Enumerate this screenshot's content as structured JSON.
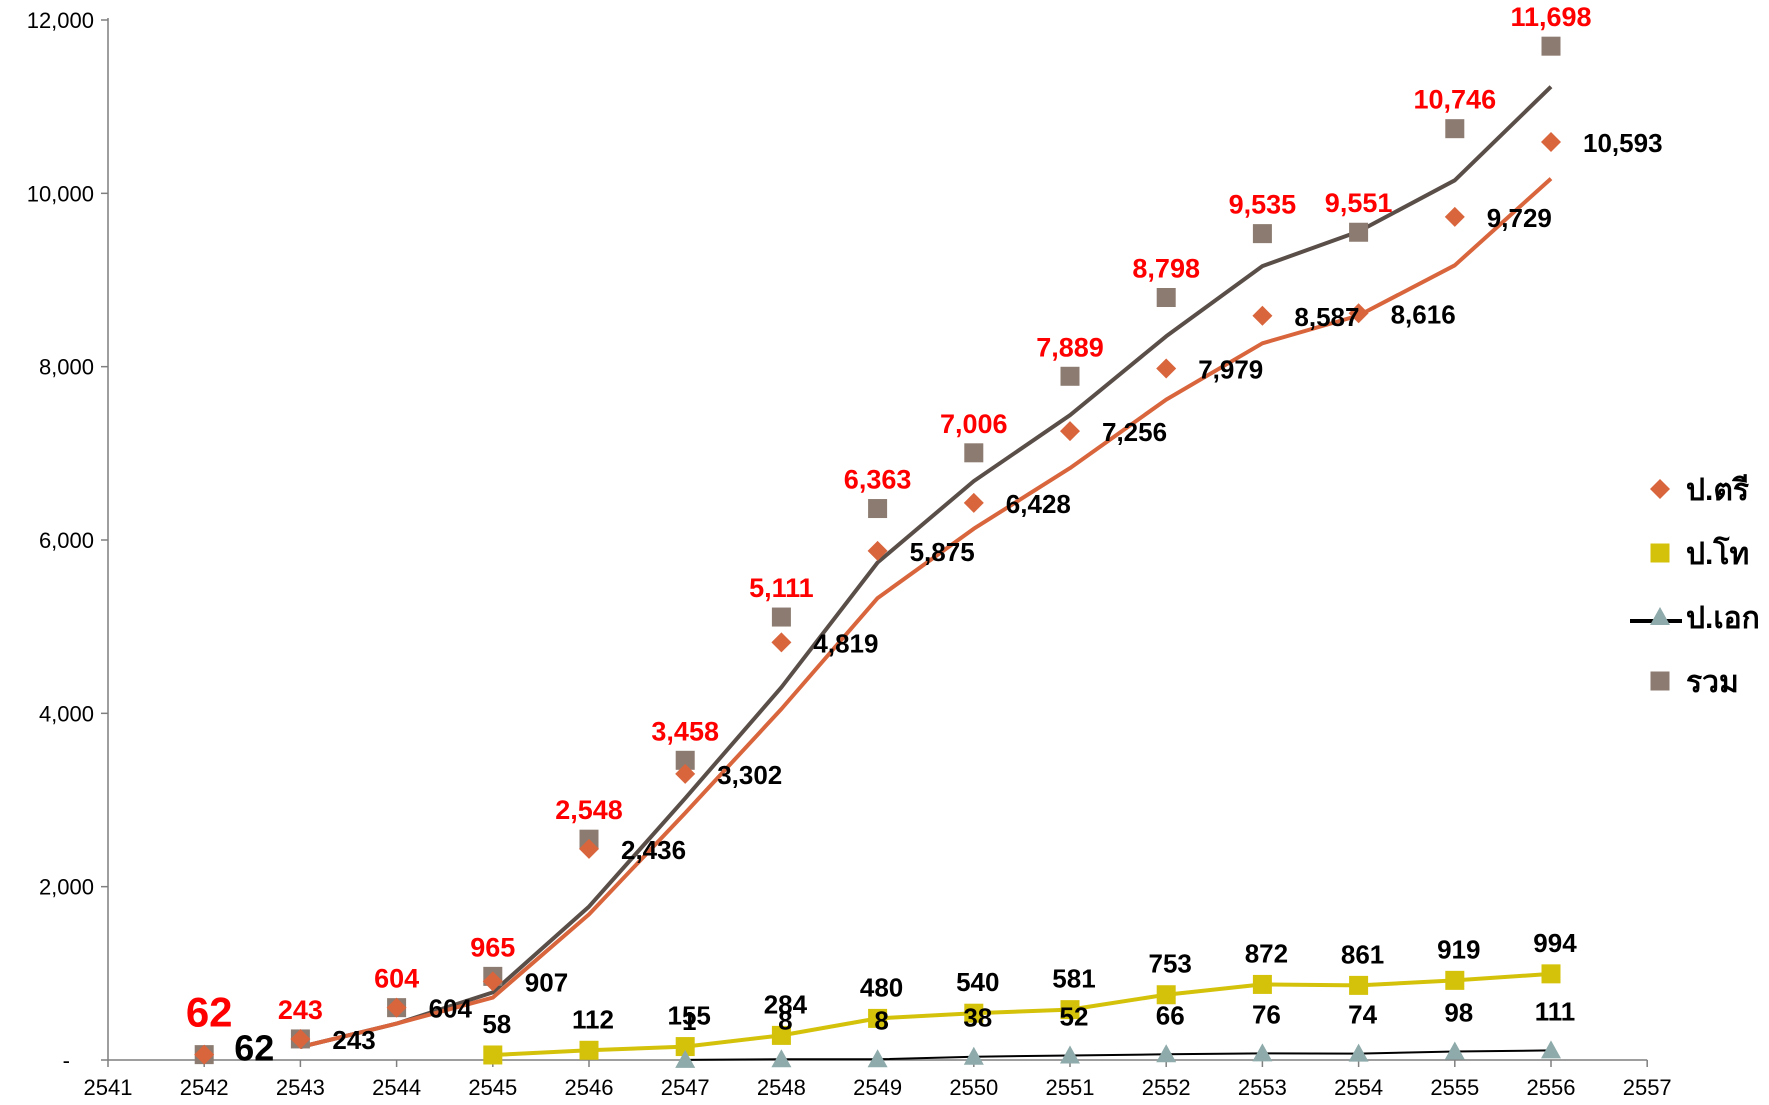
{
  "chart_data": {
    "type": "line",
    "x": [
      2542,
      2543,
      2544,
      2545,
      2546,
      2547,
      2548,
      2549,
      2550,
      2551,
      2552,
      2553,
      2554,
      2555,
      2556
    ],
    "xlim": [
      2541,
      2557
    ],
    "x_ticks": [
      "2541",
      "2542",
      "2543",
      "2544",
      "2545",
      "2546",
      "2547",
      "2548",
      "2549",
      "2550",
      "2551",
      "2552",
      "2553",
      "2554",
      "2555",
      "2556",
      "2557"
    ],
    "ylim": [
      0,
      12000
    ],
    "y_ticks": [
      "-",
      "2,000",
      "4,000",
      "6,000",
      "8,000",
      "10,000",
      "12,000"
    ],
    "y_tick_values": [
      0,
      2000,
      4000,
      6000,
      8000,
      10000,
      12000
    ],
    "grid": false,
    "legend_position": "right",
    "series": [
      {
        "name": "ป.ตรี",
        "color": "#d9653d",
        "marker": "diamond",
        "markers": [
          62,
          243,
          604,
          907,
          2436,
          3302,
          4819,
          5875,
          6428,
          7256,
          7979,
          8587,
          8616,
          9729,
          10593
        ],
        "line": [
          null,
          150,
          420,
          720,
          1680,
          2850,
          4050,
          5330,
          6130,
          6830,
          7620,
          8270,
          8590,
          9170,
          10170
        ],
        "labels": [
          "62",
          "243",
          "604",
          "907",
          "2,436",
          "3,302",
          "4,819",
          "5,875",
          "6,428",
          "7,256",
          "7,979",
          "8,587",
          "8,616",
          "9,729",
          "10,593"
        ]
      },
      {
        "name": "ป.โท",
        "color": "#d4c20a",
        "marker": "square",
        "x": [
          2545,
          2546,
          2547,
          2548,
          2549,
          2550,
          2551,
          2552,
          2553,
          2554,
          2555,
          2556
        ],
        "values": [
          58,
          112,
          155,
          284,
          480,
          540,
          581,
          753,
          872,
          861,
          919,
          994
        ],
        "labels": [
          "58",
          "112",
          "155",
          "284",
          "480",
          "540",
          "581",
          "753",
          "872",
          "861",
          "919",
          "994"
        ]
      },
      {
        "name": "ป.เอก",
        "color": "#000000",
        "marker_color": "#8eaaaa",
        "marker": "triangle",
        "x": [
          2547,
          2548,
          2549,
          2550,
          2551,
          2552,
          2553,
          2554,
          2555,
          2556
        ],
        "values": [
          1,
          8,
          8,
          38,
          52,
          66,
          76,
          74,
          98,
          111
        ],
        "labels": [
          "1",
          "8",
          "8",
          "38",
          "52",
          "66",
          "76",
          "74",
          "98",
          "111"
        ]
      },
      {
        "name": "รวม",
        "color": "#8c7b70",
        "line_color": "#5a4e48",
        "marker": "square",
        "markers": [
          62,
          243,
          604,
          965,
          2548,
          3458,
          5111,
          6363,
          7006,
          7889,
          8798,
          9535,
          9551,
          10746,
          11698
        ],
        "line": [
          null,
          150,
          420,
          780,
          1770,
          3020,
          4300,
          5740,
          6680,
          7440,
          8350,
          9160,
          9560,
          10150,
          11230
        ],
        "labels": [
          "62",
          "243",
          "604",
          "965",
          "2,548",
          "3,458",
          "5,111",
          "6,363",
          "7,006",
          "7,889",
          "8,798",
          "9,535",
          "9,551",
          "10,746",
          "11,698"
        ]
      }
    ]
  }
}
